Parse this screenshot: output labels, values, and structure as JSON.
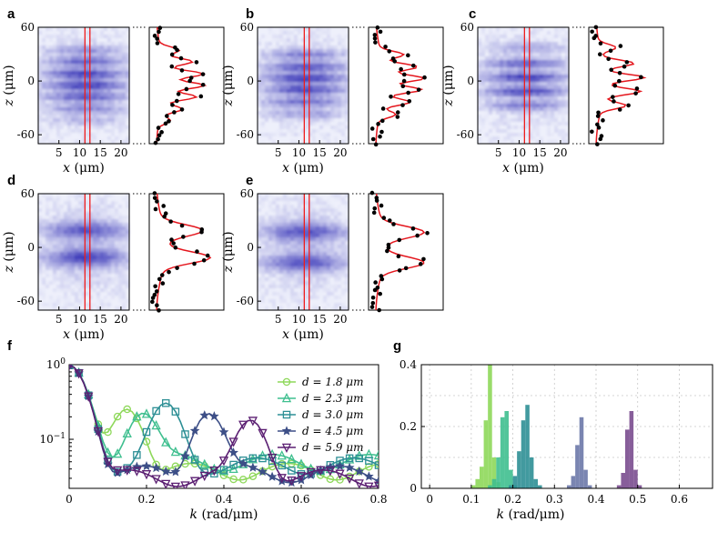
{
  "chart_data": [
    {
      "type": "heatmap",
      "panels": [
        {
          "letter": "a",
          "xlabel": "x (μm)",
          "ylabel": "z (μm)",
          "xticks": [
            "5",
            "10",
            "15",
            "20"
          ],
          "yticks": [
            "60",
            "0",
            "-60"
          ],
          "xlim": [
            0,
            22
          ],
          "ylim": [
            -70,
            60
          ]
        },
        {
          "letter": "b",
          "xlabel": "x (μm)",
          "ylabel": "z (μm)",
          "xticks": [
            "5",
            "10",
            "15",
            "20"
          ],
          "yticks": [
            "60",
            "0",
            "-60"
          ],
          "xlim": [
            0,
            22
          ],
          "ylim": [
            -70,
            60
          ]
        },
        {
          "letter": "c",
          "xlabel": "x (μm)",
          "ylabel": "z (μm)",
          "xticks": [
            "5",
            "10",
            "15",
            "20"
          ],
          "yticks": [
            "60",
            "0",
            "-60"
          ],
          "xlim": [
            0,
            22
          ],
          "ylim": [
            -70,
            60
          ]
        },
        {
          "letter": "d",
          "xlabel": "x (μm)",
          "ylabel": "z (μm)",
          "xticks": [
            "5",
            "10",
            "15",
            "20"
          ],
          "yticks": [
            "60",
            "0",
            "-60"
          ],
          "xlim": [
            0,
            22
          ],
          "ylim": [
            -70,
            60
          ]
        },
        {
          "letter": "e",
          "xlabel": "x (μm)",
          "ylabel": "z (μm)",
          "xticks": [
            "5",
            "10",
            "15",
            "20"
          ],
          "yticks": [
            "60",
            "0",
            "-60"
          ],
          "xlim": [
            0,
            22
          ],
          "ylim": [
            -70,
            60
          ]
        }
      ]
    },
    {
      "type": "line",
      "letter": "f",
      "xlabel": "k (rad/μm)",
      "xticks": [
        "0",
        "0.2",
        "0.4",
        "0.6",
        "0.8"
      ],
      "yticks": [
        "10^0",
        "10^-1"
      ],
      "xlim": [
        0,
        0.8
      ],
      "ylim": [
        0.022,
        1.0
      ],
      "scale_y": "log",
      "legend_position": "top-right",
      "series": [
        {
          "name": "d = 1.8 μm",
          "color": "#8ed85a",
          "marker": "circle",
          "peak_k": 0.15,
          "peak_val": 0.22
        },
        {
          "name": "d = 2.3 μm",
          "color": "#3fbf8f",
          "marker": "triangle-up",
          "peak_k": 0.19,
          "peak_val": 0.18
        },
        {
          "name": "d = 3.0 μm",
          "color": "#2d8f95",
          "marker": "square",
          "peak_k": 0.25,
          "peak_val": 0.25
        },
        {
          "name": "d = 4.5 μm",
          "color": "#3d4f87",
          "marker": "star",
          "peak_k": 0.36,
          "peak_val": 0.19
        },
        {
          "name": "d = 5.9 μm",
          "color": "#5b1f72",
          "marker": "triangle-down",
          "peak_k": 0.47,
          "peak_val": 0.15
        }
      ]
    },
    {
      "type": "bar",
      "letter": "g",
      "xlabel": "k (rad/μm)",
      "xticks": [
        "0",
        "0.1",
        "0.2",
        "0.3",
        "0.4",
        "0.5",
        "0.6"
      ],
      "yticks": [
        "0",
        "0.2",
        "0.4"
      ],
      "xlim": [
        -0.02,
        0.68
      ],
      "ylim": [
        0,
        0.4
      ],
      "series": [
        {
          "name": "d = 1.8 μm",
          "color": "#8ed85a",
          "x": [
            0.105,
            0.115,
            0.125,
            0.135,
            0.145,
            0.155,
            0.165
          ],
          "values": [
            0.01,
            0.03,
            0.07,
            0.22,
            0.4,
            0.1,
            0.02
          ]
        },
        {
          "name": "d = 2.3 μm",
          "color": "#3fbf8f",
          "x": [
            0.145,
            0.155,
            0.165,
            0.175,
            0.185,
            0.195,
            0.205
          ],
          "values": [
            0.01,
            0.03,
            0.1,
            0.23,
            0.25,
            0.06,
            0.01
          ]
        },
        {
          "name": "d = 3.0 μm",
          "color": "#2d8f95",
          "x": [
            0.195,
            0.205,
            0.215,
            0.225,
            0.235,
            0.245,
            0.255,
            0.265
          ],
          "values": [
            0.01,
            0.04,
            0.12,
            0.22,
            0.27,
            0.1,
            0.03,
            0.01
          ]
        },
        {
          "name": "d = 4.5 μm",
          "color": "#6b78a8",
          "x": [
            0.335,
            0.345,
            0.355,
            0.365,
            0.375,
            0.385
          ],
          "values": [
            0.01,
            0.04,
            0.14,
            0.23,
            0.06,
            0.01
          ]
        },
        {
          "name": "d = 5.9 μm",
          "color": "#7a4d8f",
          "x": [
            0.455,
            0.465,
            0.475,
            0.485,
            0.495,
            0.505
          ],
          "values": [
            0.01,
            0.05,
            0.19,
            0.25,
            0.06,
            0.01
          ]
        }
      ]
    }
  ]
}
